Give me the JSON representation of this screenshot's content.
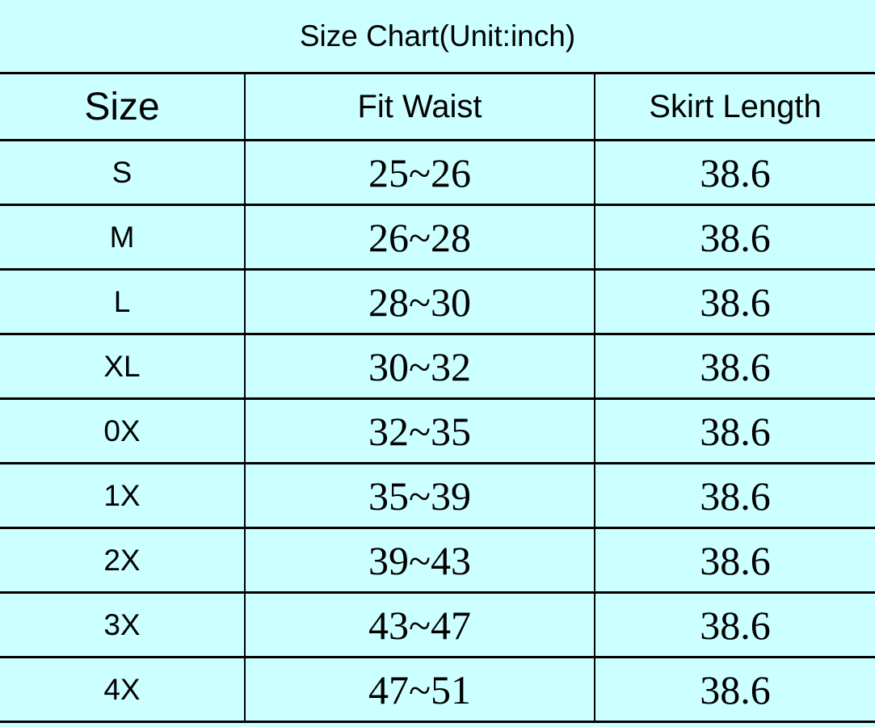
{
  "chart_data": {
    "type": "table",
    "title": "Size Chart(Unit:inch)",
    "columns": [
      "Size",
      "Fit Waist",
      "Skirt Length"
    ],
    "rows": [
      [
        "S",
        "25~26",
        "38.6"
      ],
      [
        "M",
        "26~28",
        "38.6"
      ],
      [
        "L",
        "28~30",
        "38.6"
      ],
      [
        "XL",
        "30~32",
        "38.6"
      ],
      [
        "0X",
        "32~35",
        "38.6"
      ],
      [
        "1X",
        "35~39",
        "38.6"
      ],
      [
        "2X",
        "39~43",
        "38.6"
      ],
      [
        "3X",
        "43~47",
        "38.6"
      ],
      [
        "4X",
        "47~51",
        "38.6"
      ]
    ],
    "colors": {
      "background": "#ccffff",
      "border": "#000000",
      "text": "#000000"
    }
  }
}
